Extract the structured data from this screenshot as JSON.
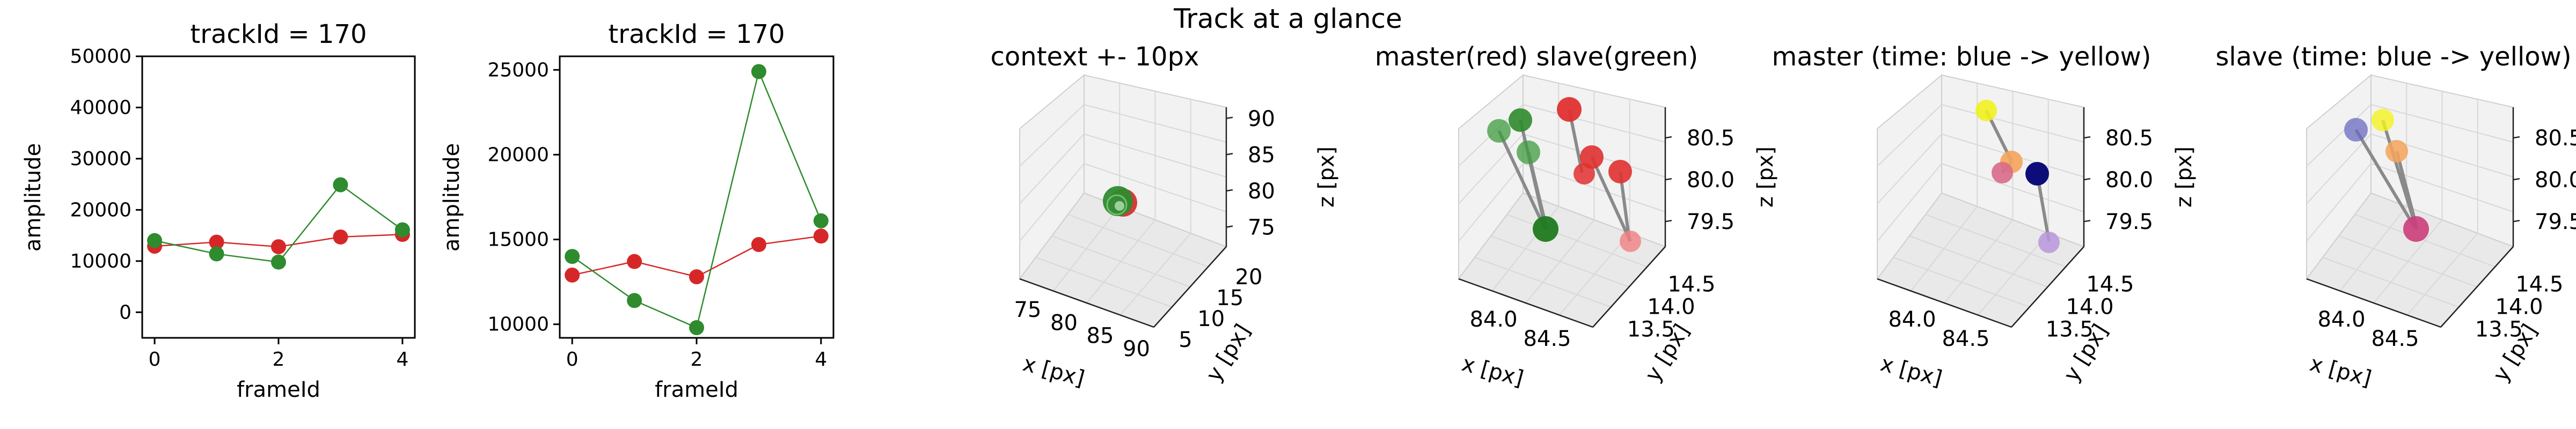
{
  "suptitle": "Track at a glance",
  "chart_data": [
    {
      "type": "line",
      "title": "trackId = 170",
      "xlabel": "frameId",
      "ylabel": "amplitude",
      "xlim": [
        -0.2,
        4.2
      ],
      "ylim": [
        -5000,
        50000
      ],
      "xticks": [
        0,
        2,
        4
      ],
      "yticks": [
        0,
        10000,
        20000,
        30000,
        40000,
        50000
      ],
      "series": [
        {
          "color": "#d62728",
          "x": [
            0,
            1,
            2,
            3,
            4
          ],
          "values": [
            12900,
            13700,
            12800,
            14700,
            15200
          ]
        },
        {
          "color": "#2e8b2e",
          "x": [
            0,
            1,
            2,
            3,
            4
          ],
          "values": [
            14000,
            11400,
            9800,
            24900,
            16100
          ]
        }
      ]
    },
    {
      "type": "line",
      "title": "trackId = 170",
      "xlabel": "frameId",
      "ylabel": "amplitude",
      "xlim": [
        -0.2,
        4.2
      ],
      "ylim": [
        9200,
        25800
      ],
      "xticks": [
        0,
        2,
        4
      ],
      "yticks": [
        10000,
        15000,
        20000,
        25000
      ],
      "series": [
        {
          "color": "#d62728",
          "x": [
            0,
            1,
            2,
            3,
            4
          ],
          "values": [
            12900,
            13700,
            12800,
            14700,
            15200
          ]
        },
        {
          "color": "#2e8b2e",
          "x": [
            0,
            1,
            2,
            3,
            4
          ],
          "values": [
            14000,
            11400,
            9800,
            24900,
            16100
          ]
        }
      ]
    },
    {
      "type": "scatter",
      "title": "context +- 10px",
      "xlabel": "x [px]",
      "ylabel": "y [px]",
      "zlabel": "z [px]",
      "xticks": [
        "75",
        "80",
        "85",
        "90"
      ],
      "yticks": [
        "5",
        "10",
        "15",
        "20"
      ],
      "zticks": [
        "75",
        "80",
        "85",
        "90"
      ]
    },
    {
      "type": "scatter",
      "title": "master(red) slave(green)",
      "xlabel": "x [px]",
      "ylabel": "y [px]",
      "zlabel": "z [px]",
      "xticks": [
        "84.0",
        "84.5"
      ],
      "yticks": [
        "13.5",
        "14.0",
        "14.5"
      ],
      "zticks": [
        "79.5",
        "80.0",
        "80.5"
      ]
    },
    {
      "type": "scatter",
      "title": "master (time: blue -> yellow)",
      "xlabel": "x [px]",
      "ylabel": "y [px]",
      "zlabel": "z [px]",
      "xticks": [
        "84.0",
        "84.5"
      ],
      "yticks": [
        "13.5",
        "14.0",
        "14.5"
      ],
      "zticks": [
        "79.5",
        "80.0",
        "80.5"
      ]
    },
    {
      "type": "scatter",
      "title": "slave (time: blue -> yellow)",
      "xlabel": "x [px]",
      "ylabel": "y [px]",
      "zlabel": "z [px]",
      "xticks": [
        "84.0",
        "84.5"
      ],
      "yticks": [
        "13.5",
        "14.0",
        "14.5"
      ],
      "zticks": [
        "79.5",
        "80.0",
        "80.5"
      ]
    }
  ]
}
